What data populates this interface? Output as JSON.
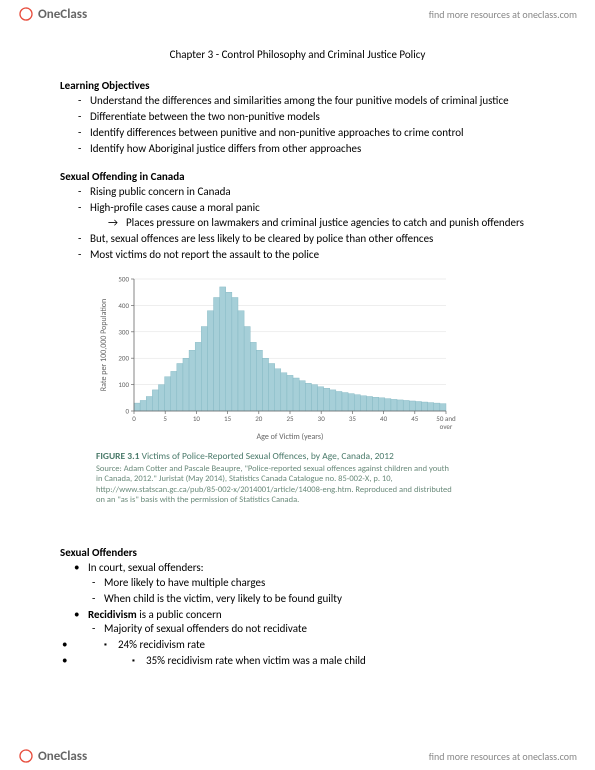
{
  "header": {
    "brand": "OneClass",
    "link_text": "find more resources at oneclass.com"
  },
  "footer": {
    "brand": "OneClass",
    "link_text": "find more resources at oneclass.com"
  },
  "chapter_title": "Chapter 3 -  Control Philosophy and Criminal Justice Policy",
  "sections": {
    "learning_objectives": {
      "heading": "Learning Objectives",
      "items": [
        "Understand the differences and similarities among the four punitive models of criminal justice",
        "Differentiate between the two non-punitive models",
        "Identify differences between punitive and non-punitive approaches to crime control",
        "Identify how Aboriginal justice differs from other approaches"
      ]
    },
    "sexual_offending": {
      "heading": "Sexual Offending in Canada",
      "items": [
        "Rising public concern in Canada",
        "High-profile cases cause a moral panic",
        "But, sexual offences are less likely to be cleared by police than other offences",
        "Most victims do not report the assault to the police"
      ],
      "sub_arrow": "Places pressure on lawmakers and criminal justice agencies to catch and punish offenders"
    },
    "figure": {
      "label": "FIGURE 3.1",
      "caption": "Victims of Police-Reported Sexual Offences, by Age, Canada, 2012",
      "source": "Source: Adam Cotter and Pascale Beaupre, \"Police-reported sexual offences against children and youth in Canada, 2012.\" Juristat (May 2014), Statistics Canada Catalogue no. 85-002-X, p. 10, http://www.statscan.gc.ca/pub/85-002-x/2014001/article/14008-eng.htm. Reproduced and distributed on an \"as is\" basis with the permission of Statistics Canada."
    },
    "sexual_offenders": {
      "heading": "Sexual Offenders",
      "intro": "In court, sexual offenders:",
      "intro_items": [
        "More likely to have multiple charges",
        "When child is the victim, very likely to be found guilty"
      ],
      "recidivism_line_bold": "Recidivism",
      "recidivism_line_rest": " is a public concern",
      "recidivism_items": [
        "Majority of sexual offenders do not recidivate"
      ],
      "stats": [
        "24% recidivism rate",
        "35% recidivism rate when victim was a male child"
      ]
    }
  },
  "chart": {
    "type": "histogram",
    "xlabel": "Age of Victim (years)",
    "ylabel": "Rate per 100,000 Population",
    "x_ticks": [
      0,
      5,
      10,
      15,
      20,
      25,
      30,
      35,
      40,
      45,
      50
    ],
    "x_tick_last_label": "50 and over",
    "ylim": [
      0,
      500
    ],
    "y_ticks": [
      0,
      100,
      200,
      300,
      400,
      500
    ],
    "bar_color": "#a6cfd8",
    "bar_border_color": "#7fb5c0",
    "axis_color": "#666666",
    "grid_color": "#dddddd",
    "label_fontsize": 8,
    "tick_fontsize": 7,
    "background_color": "#ffffff",
    "bar_width": 1.0,
    "values": [
      30,
      40,
      55,
      80,
      100,
      130,
      150,
      180,
      200,
      230,
      260,
      320,
      380,
      430,
      470,
      450,
      430,
      380,
      320,
      260,
      230,
      200,
      180,
      160,
      145,
      135,
      125,
      115,
      105,
      100,
      92,
      86,
      80,
      74,
      70,
      66,
      62,
      58,
      55,
      52,
      50,
      47,
      44,
      42,
      40,
      38,
      36,
      34,
      32,
      30,
      28
    ]
  }
}
